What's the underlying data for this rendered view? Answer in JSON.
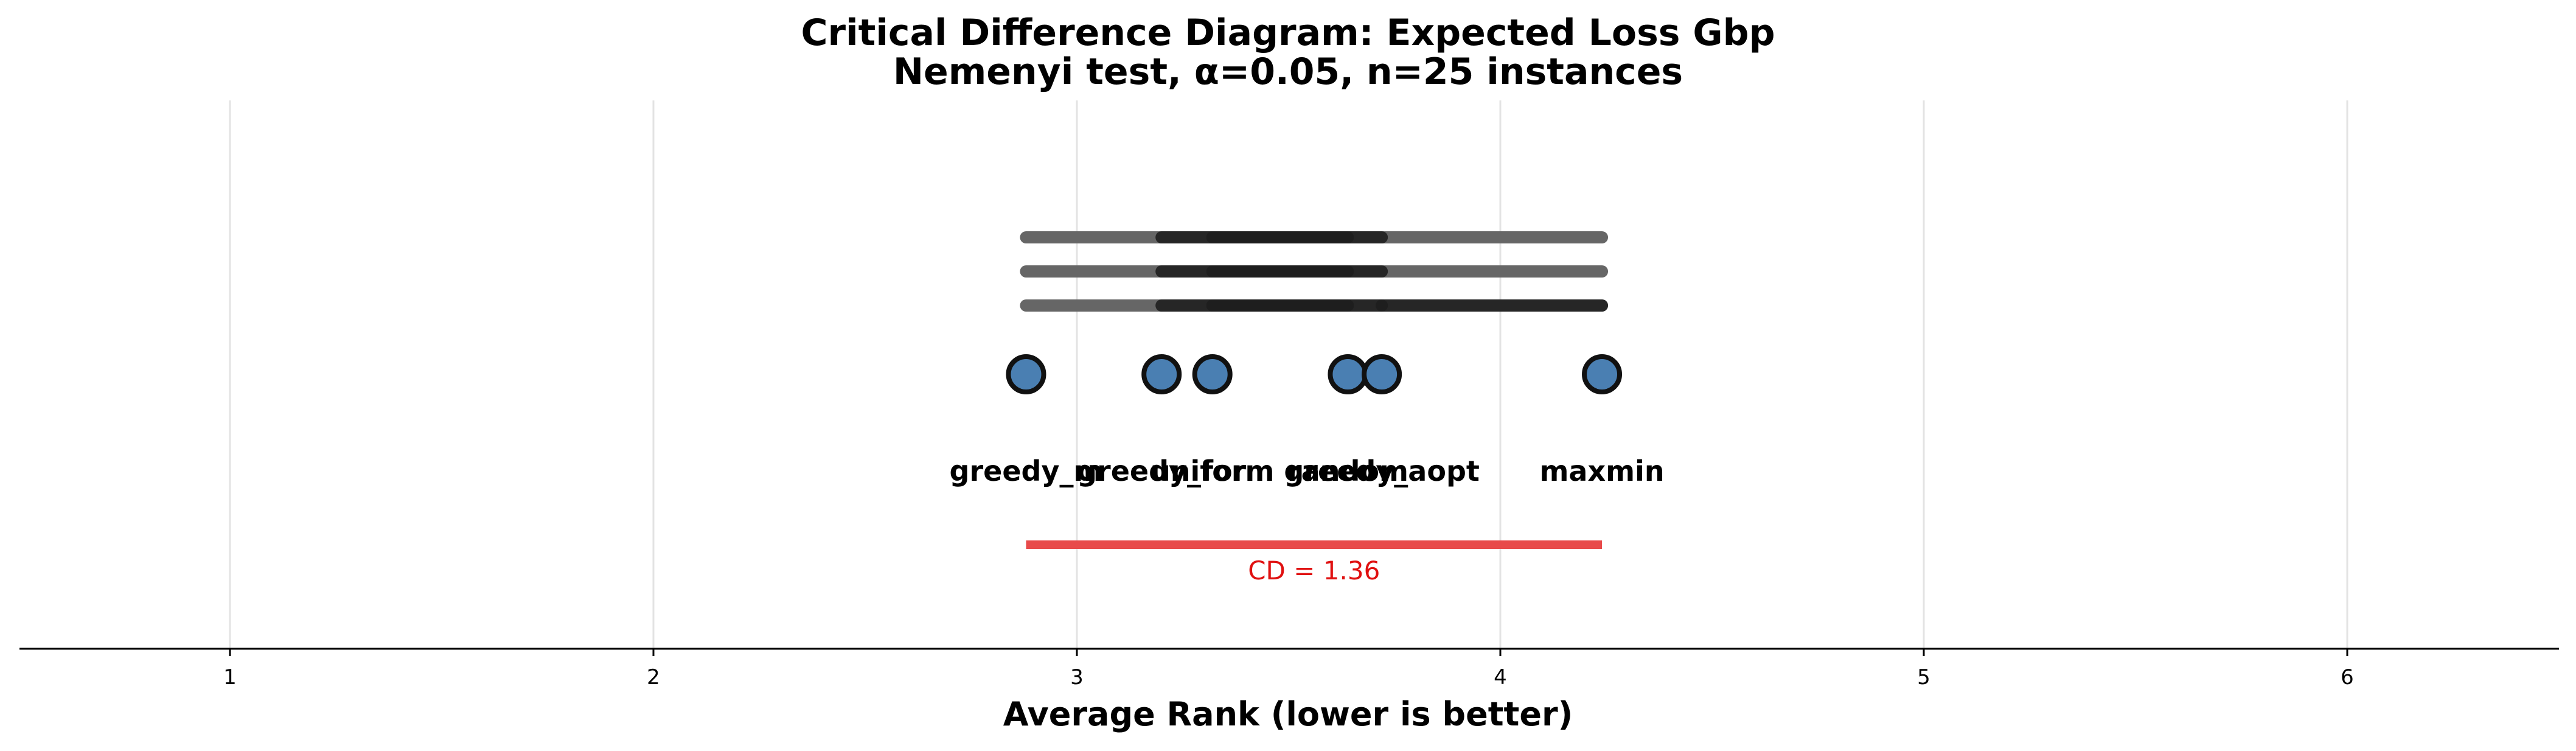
{
  "chart_data": {
    "type": "scatter",
    "title": "Critical Difference Diagram: Expected Loss Gbp",
    "subtitle": "Nemenyi test, α=0.05, n=25 instances",
    "xlabel": "Average Rank (lower is better)",
    "xlim": [
      0.5,
      6.5
    ],
    "xticks": [
      "1",
      "2",
      "3",
      "4",
      "5",
      "6"
    ],
    "grid": true,
    "methods": [
      {
        "name": "greedy_m",
        "rank": 2.88
      },
      {
        "name": "greedy_for",
        "rank": 3.2
      },
      {
        "name": "uniform",
        "rank": 3.32
      },
      {
        "name": "random",
        "rank": 3.64
      },
      {
        "name": "greedy_aopt",
        "rank": 3.72
      },
      {
        "name": "maxmin",
        "rank": 4.24
      }
    ],
    "cliques": [
      {
        "segments": [
          [
            2.88,
            4.24
          ],
          [
            3.2,
            3.64
          ],
          [
            3.32,
            3.72
          ]
        ]
      },
      {
        "segments": [
          [
            2.88,
            4.24
          ],
          [
            3.2,
            3.72
          ],
          [
            3.32,
            3.64
          ]
        ]
      },
      {
        "segments": [
          [
            2.88,
            4.24
          ],
          [
            3.2,
            3.64
          ],
          [
            3.32,
            3.72
          ],
          [
            3.72,
            4.24
          ]
        ]
      }
    ],
    "cd": {
      "value": 1.36,
      "label": "CD = 1.36",
      "start": 2.88,
      "end": 4.24
    },
    "colors": {
      "marker_fill": "#4a7fb2",
      "marker_edge": "#111111",
      "cd_bar": "#e84a4a",
      "cd_text": "#e01010",
      "clique_light": "#666666",
      "clique_dark": "#1e1e1e",
      "grid": "#e3e3e3"
    }
  }
}
